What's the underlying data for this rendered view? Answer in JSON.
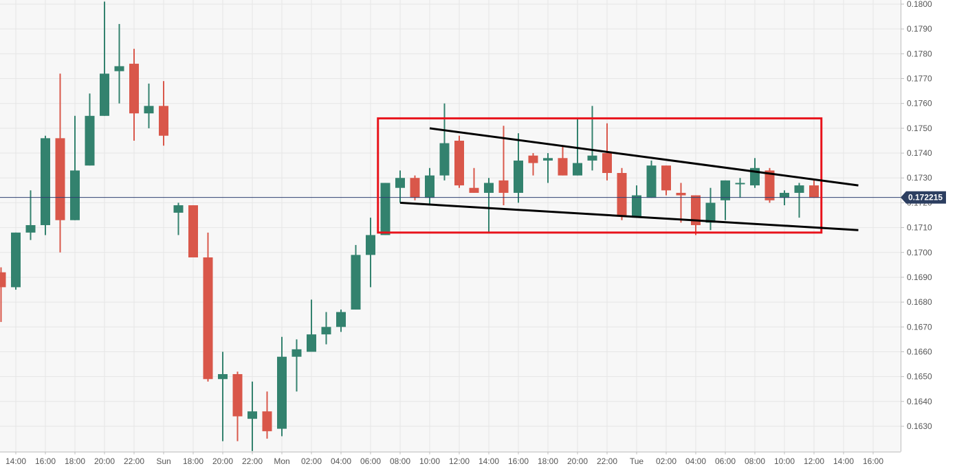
{
  "chart_data": {
    "type": "candlestick",
    "title": "",
    "xlabel": "",
    "ylabel": "",
    "ylim": [
      0.162,
      0.18
    ],
    "grid": true,
    "y_ticks": [
      "0.1800",
      "0.1790",
      "0.1780",
      "0.1770",
      "0.1760",
      "0.1750",
      "0.1740",
      "0.1730",
      "0.1720",
      "0.1710",
      "0.1700",
      "0.1690",
      "0.1680",
      "0.1670",
      "0.1660",
      "0.1650",
      "0.1640",
      "0.1630"
    ],
    "x_ticks": [
      "14:00",
      "16:00",
      "18:00",
      "20:00",
      "22:00",
      "Sun",
      "18:00",
      "20:00",
      "22:00",
      "Mon",
      "02:00",
      "04:00",
      "06:00",
      "08:00",
      "10:00",
      "12:00",
      "14:00",
      "16:00",
      "18:00",
      "20:00",
      "22:00",
      "Tue",
      "02:00",
      "04:00",
      "06:00",
      "08:00",
      "10:00",
      "12:00",
      "14:00",
      "16:00"
    ],
    "current_price": "0.172215",
    "colors": {
      "up": "#33826e",
      "down": "#d9574a",
      "box": "#e8131b",
      "trendline": "#000000",
      "price_line": "#2c3e70",
      "price_tag": "#2c3e60",
      "grid": "#e6e6e6",
      "background": "#f7f7f7"
    },
    "candles": [
      {
        "t": "Sat 13:00",
        "o": 0.1692,
        "h": 0.1694,
        "l": 0.1672,
        "c": 0.1686
      },
      {
        "t": "Sat 14:00",
        "o": 0.1686,
        "h": 0.1708,
        "l": 0.1685,
        "c": 0.1708
      },
      {
        "t": "Sat 15:00",
        "o": 0.1708,
        "h": 0.1725,
        "l": 0.1705,
        "c": 0.1711
      },
      {
        "t": "Sat 16:00",
        "o": 0.1711,
        "h": 0.1747,
        "l": 0.1707,
        "c": 0.1746
      },
      {
        "t": "Sat 17:00",
        "o": 0.1746,
        "h": 0.1772,
        "l": 0.17,
        "c": 0.1713
      },
      {
        "t": "Sat 18:00",
        "o": 0.1713,
        "h": 0.1755,
        "l": 0.1713,
        "c": 0.1733
      },
      {
        "t": "Sat 19:00",
        "o": 0.1735,
        "h": 0.1764,
        "l": 0.1735,
        "c": 0.1755
      },
      {
        "t": "Sat 20:00",
        "o": 0.1755,
        "h": 0.1801,
        "l": 0.1755,
        "c": 0.1772
      },
      {
        "t": "Sat 21:00",
        "o": 0.1773,
        "h": 0.1792,
        "l": 0.176,
        "c": 0.1775
      },
      {
        "t": "Sat 22:00",
        "o": 0.1776,
        "h": 0.1782,
        "l": 0.1745,
        "c": 0.1756
      },
      {
        "t": "Sat 23:00",
        "o": 0.1756,
        "h": 0.1768,
        "l": 0.175,
        "c": 0.1759
      },
      {
        "t": "Sun 00:00",
        "o": 0.1759,
        "h": 0.1769,
        "l": 0.1743,
        "c": 0.1747
      },
      {
        "t": "Sun 17:00",
        "o": 0.1716,
        "h": 0.172,
        "l": 0.1707,
        "c": 0.1719
      },
      {
        "t": "Sun 18:00",
        "o": 0.1719,
        "h": 0.1719,
        "l": 0.1698,
        "c": 0.1698
      },
      {
        "t": "Sun 19:00",
        "o": 0.1698,
        "h": 0.1708,
        "l": 0.1648,
        "c": 0.1649
      },
      {
        "t": "Sun 20:00",
        "o": 0.1649,
        "h": 0.166,
        "l": 0.1624,
        "c": 0.1651
      },
      {
        "t": "Sun 21:00",
        "o": 0.1651,
        "h": 0.1652,
        "l": 0.1624,
        "c": 0.1634
      },
      {
        "t": "Sun 22:00",
        "o": 0.1633,
        "h": 0.1648,
        "l": 0.162,
        "c": 0.1636
      },
      {
        "t": "Sun 23:00",
        "o": 0.1636,
        "h": 0.1644,
        "l": 0.1625,
        "c": 0.1628
      },
      {
        "t": "Mon 00:00",
        "o": 0.1629,
        "h": 0.1666,
        "l": 0.1626,
        "c": 0.1658
      },
      {
        "t": "Mon 01:00",
        "o": 0.1658,
        "h": 0.1665,
        "l": 0.1644,
        "c": 0.1661
      },
      {
        "t": "Mon 02:00",
        "o": 0.166,
        "h": 0.1681,
        "l": 0.166,
        "c": 0.1667
      },
      {
        "t": "Mon 03:00",
        "o": 0.1667,
        "h": 0.1676,
        "l": 0.1663,
        "c": 0.167
      },
      {
        "t": "Mon 04:00",
        "o": 0.167,
        "h": 0.1677,
        "l": 0.1668,
        "c": 0.1676
      },
      {
        "t": "Mon 05:00",
        "o": 0.1677,
        "h": 0.1703,
        "l": 0.1677,
        "c": 0.1699
      },
      {
        "t": "Mon 06:00",
        "o": 0.1699,
        "h": 0.1714,
        "l": 0.1686,
        "c": 0.1707
      },
      {
        "t": "Mon 07:00",
        "o": 0.1707,
        "h": 0.1728,
        "l": 0.1707,
        "c": 0.1728
      },
      {
        "t": "Mon 08:00",
        "o": 0.1726,
        "h": 0.1733,
        "l": 0.172,
        "c": 0.173
      },
      {
        "t": "Mon 09:00",
        "o": 0.173,
        "h": 0.1731,
        "l": 0.1721,
        "c": 0.1722
      },
      {
        "t": "Mon 10:00",
        "o": 0.1722,
        "h": 0.1734,
        "l": 0.1719,
        "c": 0.1731
      },
      {
        "t": "Mon 11:00",
        "o": 0.1731,
        "h": 0.176,
        "l": 0.1729,
        "c": 0.1744
      },
      {
        "t": "Mon 12:00",
        "o": 0.1745,
        "h": 0.1747,
        "l": 0.1726,
        "c": 0.1727
      },
      {
        "t": "Mon 13:00",
        "o": 0.1726,
        "h": 0.1734,
        "l": 0.1724,
        "c": 0.1724
      },
      {
        "t": "Mon 14:00",
        "o": 0.1724,
        "h": 0.173,
        "l": 0.1708,
        "c": 0.1728
      },
      {
        "t": "Mon 15:00",
        "o": 0.1729,
        "h": 0.1751,
        "l": 0.1719,
        "c": 0.1724
      },
      {
        "t": "Mon 16:00",
        "o": 0.1724,
        "h": 0.1748,
        "l": 0.172,
        "c": 0.1737
      },
      {
        "t": "Mon 17:00",
        "o": 0.1739,
        "h": 0.174,
        "l": 0.1731,
        "c": 0.1736
      },
      {
        "t": "Mon 18:00",
        "o": 0.1737,
        "h": 0.174,
        "l": 0.1728,
        "c": 0.1738
      },
      {
        "t": "Mon 19:00",
        "o": 0.1738,
        "h": 0.1743,
        "l": 0.1731,
        "c": 0.1731
      },
      {
        "t": "Mon 20:00",
        "o": 0.1731,
        "h": 0.1754,
        "l": 0.1731,
        "c": 0.1736
      },
      {
        "t": "Mon 21:00",
        "o": 0.1737,
        "h": 0.1759,
        "l": 0.1733,
        "c": 0.1739
      },
      {
        "t": "Mon 22:00",
        "o": 0.174,
        "h": 0.1752,
        "l": 0.1729,
        "c": 0.1732
      },
      {
        "t": "Mon 23:00",
        "o": 0.1732,
        "h": 0.1734,
        "l": 0.1713,
        "c": 0.1715
      },
      {
        "t": "Tue 00:00",
        "o": 0.1714,
        "h": 0.1727,
        "l": 0.1714,
        "c": 0.1723
      },
      {
        "t": "Tue 01:00",
        "o": 0.1722,
        "h": 0.1737,
        "l": 0.1722,
        "c": 0.1735
      },
      {
        "t": "Tue 02:00",
        "o": 0.1735,
        "h": 0.1735,
        "l": 0.1723,
        "c": 0.1725
      },
      {
        "t": "Tue 03:00",
        "o": 0.1724,
        "h": 0.1728,
        "l": 0.1712,
        "c": 0.1723
      },
      {
        "t": "Tue 04:00",
        "o": 0.1723,
        "h": 0.1723,
        "l": 0.1707,
        "c": 0.1711
      },
      {
        "t": "Tue 05:00",
        "o": 0.1712,
        "h": 0.1726,
        "l": 0.1709,
        "c": 0.172
      },
      {
        "t": "Tue 06:00",
        "o": 0.1721,
        "h": 0.1729,
        "l": 0.1713,
        "c": 0.1729
      },
      {
        "t": "Tue 07:00",
        "o": 0.1728,
        "h": 0.173,
        "l": 0.1722,
        "c": 0.1728
      },
      {
        "t": "Tue 08:00",
        "o": 0.1727,
        "h": 0.1738,
        "l": 0.1726,
        "c": 0.1734
      },
      {
        "t": "Tue 09:00",
        "o": 0.1733,
        "h": 0.1734,
        "l": 0.172,
        "c": 0.1721
      },
      {
        "t": "Tue 10:00",
        "o": 0.1722,
        "h": 0.1725,
        "l": 0.1719,
        "c": 0.1724
      },
      {
        "t": "Tue 11:00",
        "o": 0.1724,
        "h": 0.1728,
        "l": 0.1714,
        "c": 0.1727
      },
      {
        "t": "Tue 12:00",
        "o": 0.1727,
        "h": 0.1729,
        "l": 0.1722,
        "c": 0.1722
      }
    ],
    "annotations": {
      "box": {
        "t_start": "Mon 06:30",
        "t_end": "Tue 12:30",
        "price_top": 0.1754,
        "price_bottom": 0.1708
      },
      "trendlines": [
        {
          "t_start": "Mon 10:00",
          "p_start": 0.175,
          "t_end": "Tue 15:00",
          "p_end": 0.1727
        },
        {
          "t_start": "Mon 08:00",
          "p_start": 0.172,
          "t_end": "Tue 15:00",
          "p_end": 0.1709
        }
      ]
    }
  }
}
